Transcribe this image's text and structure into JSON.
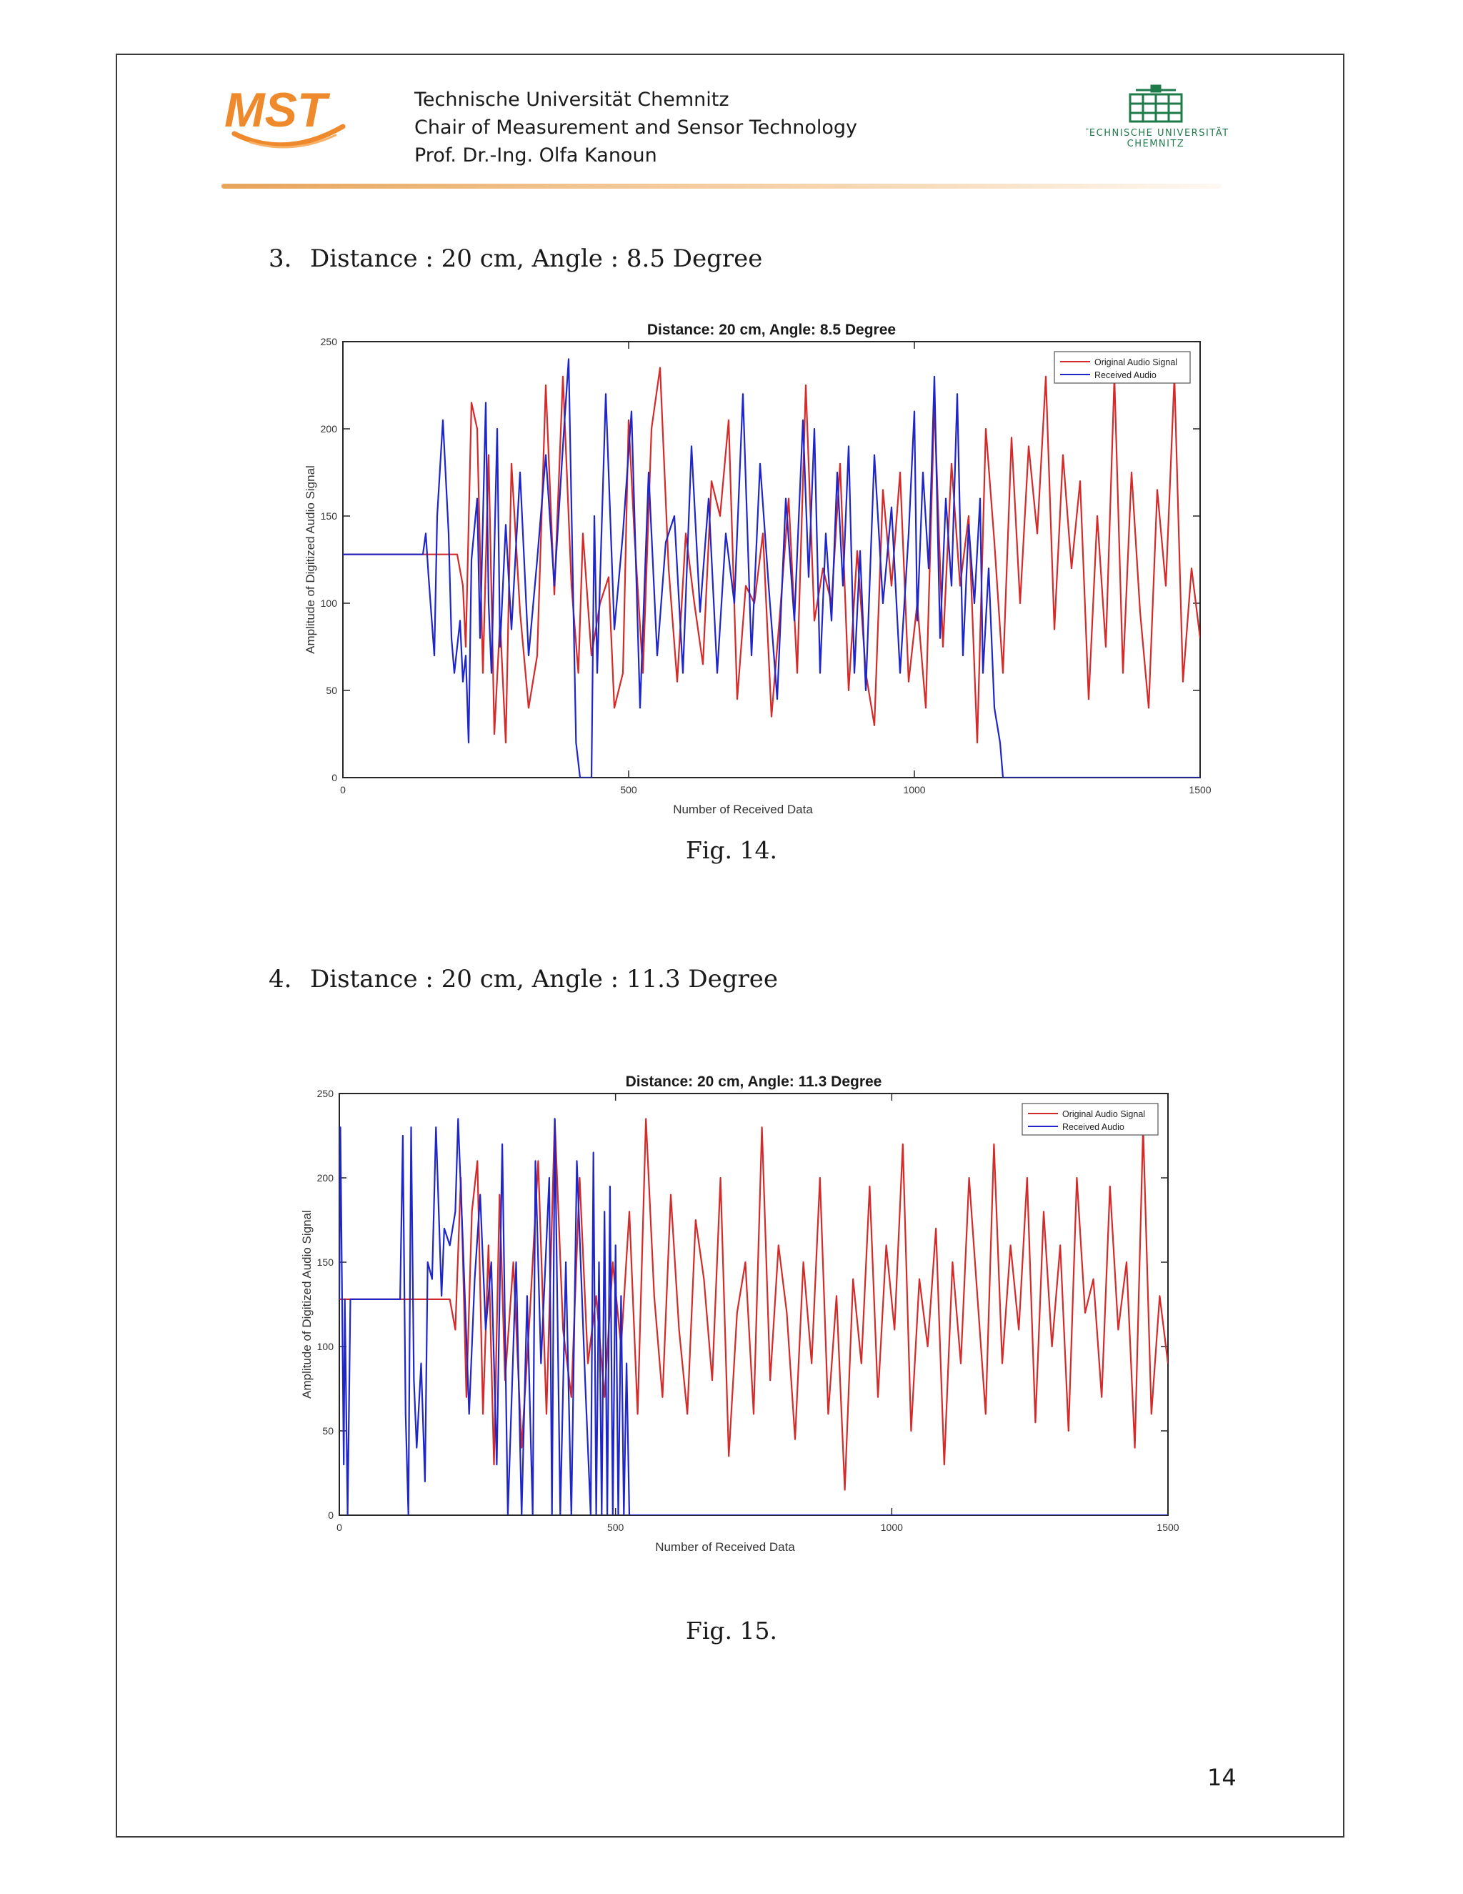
{
  "header": {
    "logo_text": "MST",
    "lines": [
      "Technische Universität Chemnitz",
      "Chair of Measurement and Sensor Technology",
      "Prof. Dr.-Ing. Olfa Kanoun"
    ],
    "university_logo_line1": "TECHNISCHE UNIVERSITÄT",
    "university_logo_line2": "CHEMNITZ"
  },
  "sections": [
    {
      "number": "3.",
      "heading": "Distance : 20 cm, Angle : 8.5 Degree",
      "caption": "Fig. 14."
    },
    {
      "number": "4.",
      "heading": "Distance : 20 cm, Angle : 11.3 Degree",
      "caption": "Fig. 15."
    }
  ],
  "page_number": "14",
  "chart_data": [
    {
      "type": "line",
      "title": "Distance: 20 cm, Angle: 8.5 Degree",
      "xlabel": "Number of Received Data",
      "ylabel": "Amplitude of Digitized Audio Signal",
      "xlim": [
        0,
        1500
      ],
      "ylim": [
        0,
        250
      ],
      "xticks": [
        "0",
        "500",
        "1000",
        "1500"
      ],
      "yticks": [
        "0",
        "50",
        "100",
        "150",
        "200",
        "250"
      ],
      "legend_position": "top-right",
      "grid": false,
      "series": [
        {
          "name": "Original Audio Signal",
          "color": "#d42a2a",
          "x": [
            0,
            200,
            210,
            215,
            225,
            235,
            245,
            255,
            265,
            275,
            285,
            295,
            310,
            325,
            340,
            355,
            370,
            385,
            400,
            412,
            420,
            435,
            450,
            465,
            475,
            490,
            500,
            510,
            525,
            540,
            555,
            570,
            585,
            600,
            615,
            630,
            645,
            660,
            675,
            690,
            705,
            720,
            735,
            750,
            765,
            780,
            795,
            810,
            825,
            840,
            855,
            870,
            885,
            900,
            915,
            930,
            945,
            960,
            975,
            990,
            1005,
            1020,
            1035,
            1050,
            1065,
            1080,
            1095,
            1110,
            1125,
            1140,
            1155,
            1170,
            1185,
            1200,
            1215,
            1230,
            1245,
            1260,
            1275,
            1290,
            1305,
            1320,
            1335,
            1350,
            1365,
            1380,
            1395,
            1410,
            1425,
            1440,
            1455,
            1470,
            1485,
            1500
          ],
          "y": [
            128,
            128,
            110,
            75,
            215,
            200,
            60,
            185,
            25,
            90,
            20,
            180,
            95,
            40,
            70,
            225,
            105,
            230,
            110,
            60,
            140,
            70,
            100,
            115,
            40,
            60,
            205,
            140,
            60,
            200,
            235,
            120,
            55,
            140,
            100,
            65,
            170,
            150,
            205,
            45,
            110,
            100,
            140,
            35,
            95,
            160,
            60,
            225,
            90,
            120,
            100,
            180,
            50,
            130,
            60,
            30,
            165,
            110,
            175,
            55,
            100,
            40,
            215,
            75,
            180,
            110,
            150,
            20,
            200,
            135,
            60,
            195,
            100,
            190,
            140,
            230,
            85,
            185,
            120,
            170,
            45,
            150,
            75,
            230,
            60,
            175,
            95,
            40,
            165,
            110,
            230,
            55,
            120,
            80
          ]
        },
        {
          "name": "Received Audio",
          "color": "#1f26c8",
          "x": [
            0,
            140,
            145,
            150,
            160,
            165,
            175,
            185,
            190,
            195,
            205,
            210,
            215,
            220,
            225,
            235,
            240,
            250,
            255,
            260,
            270,
            275,
            285,
            295,
            310,
            325,
            340,
            355,
            370,
            385,
            395,
            402,
            408,
            415,
            420,
            428,
            435,
            440,
            445,
            460,
            475,
            490,
            505,
            520,
            535,
            550,
            565,
            580,
            595,
            610,
            625,
            640,
            655,
            670,
            685,
            700,
            715,
            730,
            745,
            760,
            775,
            790,
            805,
            815,
            825,
            835,
            845,
            855,
            865,
            875,
            885,
            895,
            905,
            915,
            930,
            945,
            960,
            975,
            990,
            1000,
            1005,
            1015,
            1025,
            1035,
            1045,
            1055,
            1065,
            1075,
            1085,
            1095,
            1105,
            1115,
            1120,
            1130,
            1140,
            1150,
            1155,
            1160,
            1165,
            1170,
            1180,
            1200,
            1300,
            1400,
            1500
          ],
          "y": [
            128,
            128,
            140,
            115,
            70,
            150,
            205,
            140,
            80,
            60,
            90,
            55,
            70,
            20,
            125,
            160,
            80,
            215,
            100,
            60,
            200,
            75,
            145,
            85,
            175,
            70,
            125,
            185,
            110,
            190,
            240,
            120,
            20,
            0,
            0,
            0,
            0,
            150,
            60,
            220,
            85,
            140,
            210,
            40,
            175,
            70,
            135,
            150,
            60,
            190,
            95,
            160,
            60,
            140,
            100,
            220,
            70,
            180,
            110,
            45,
            160,
            90,
            205,
            115,
            200,
            60,
            140,
            90,
            175,
            110,
            190,
            60,
            130,
            50,
            185,
            100,
            155,
            60,
            140,
            210,
            90,
            175,
            120,
            230,
            80,
            160,
            110,
            220,
            70,
            145,
            100,
            160,
            60,
            120,
            40,
            20,
            0,
            0,
            0,
            0,
            0,
            0,
            0,
            0,
            0
          ]
        }
      ]
    },
    {
      "type": "line",
      "title": "Distance: 20 cm, Angle: 11.3 Degree",
      "xlabel": "Number of Received Data",
      "ylabel": "Amplitude of Digitized Audio Signal",
      "xlim": [
        0,
        1500
      ],
      "ylim": [
        0,
        250
      ],
      "xticks": [
        "0",
        "500",
        "1000",
        "1500"
      ],
      "yticks": [
        "0",
        "50",
        "100",
        "150",
        "200",
        "250"
      ],
      "legend_position": "top-right",
      "grid": false,
      "series": [
        {
          "name": "Original Audio Signal",
          "color": "#d42a2a",
          "x": [
            0,
            200,
            210,
            220,
            230,
            240,
            250,
            260,
            270,
            280,
            290,
            300,
            315,
            330,
            345,
            360,
            375,
            390,
            405,
            420,
            435,
            450,
            465,
            480,
            495,
            510,
            525,
            540,
            555,
            570,
            585,
            600,
            615,
            630,
            645,
            660,
            675,
            690,
            705,
            720,
            735,
            750,
            765,
            780,
            795,
            810,
            825,
            840,
            855,
            870,
            885,
            900,
            915,
            930,
            945,
            960,
            975,
            990,
            1005,
            1020,
            1035,
            1050,
            1065,
            1080,
            1095,
            1110,
            1125,
            1140,
            1155,
            1170,
            1185,
            1200,
            1215,
            1230,
            1245,
            1260,
            1275,
            1290,
            1305,
            1320,
            1335,
            1350,
            1365,
            1380,
            1395,
            1410,
            1425,
            1440,
            1455,
            1470,
            1485,
            1500
          ],
          "y": [
            128,
            128,
            110,
            200,
            70,
            180,
            210,
            60,
            160,
            30,
            190,
            80,
            150,
            40,
            120,
            210,
            60,
            235,
            110,
            70,
            200,
            90,
            130,
            70,
            150,
            100,
            180,
            60,
            235,
            130,
            70,
            190,
            110,
            60,
            175,
            140,
            80,
            200,
            35,
            120,
            150,
            60,
            230,
            80,
            160,
            120,
            45,
            150,
            90,
            200,
            60,
            130,
            15,
            140,
            90,
            195,
            70,
            160,
            110,
            220,
            50,
            140,
            100,
            170,
            30,
            150,
            90,
            200,
            130,
            60,
            220,
            90,
            160,
            110,
            200,
            55,
            180,
            100,
            160,
            50,
            200,
            120,
            140,
            70,
            195,
            110,
            150,
            40,
            230,
            60,
            130,
            90
          ]
        },
        {
          "name": "Received Audio",
          "color": "#1f26c8",
          "x": [
            0,
            2,
            5,
            8,
            10,
            15,
            20,
            25,
            30,
            60,
            110,
            115,
            120,
            125,
            130,
            135,
            140,
            148,
            155,
            160,
            168,
            175,
            185,
            190,
            200,
            210,
            215,
            225,
            235,
            245,
            255,
            265,
            275,
            285,
            295,
            305,
            320,
            330,
            340,
            350,
            355,
            365,
            380,
            385,
            390,
            400,
            410,
            420,
            430,
            445,
            455,
            460,
            465,
            470,
            475,
            480,
            485,
            490,
            495,
            500,
            505,
            510,
            515,
            520,
            525,
            530,
            540,
            600,
            700,
            800,
            900,
            1000,
            1100,
            1200,
            1300,
            1400,
            1500
          ],
          "y": [
            128,
            230,
            128,
            30,
            128,
            0,
            128,
            128,
            128,
            128,
            128,
            225,
            60,
            0,
            230,
            80,
            40,
            90,
            20,
            150,
            140,
            230,
            130,
            170,
            160,
            180,
            235,
            150,
            60,
            140,
            190,
            110,
            150,
            30,
            220,
            0,
            150,
            0,
            130,
            0,
            210,
            90,
            200,
            0,
            235,
            0,
            150,
            0,
            210,
            80,
            0,
            215,
            0,
            150,
            0,
            180,
            0,
            195,
            0,
            160,
            0,
            130,
            0,
            90,
            0,
            0,
            0,
            0,
            0,
            0,
            0,
            0,
            0,
            0,
            0,
            0,
            0
          ]
        }
      ]
    }
  ]
}
